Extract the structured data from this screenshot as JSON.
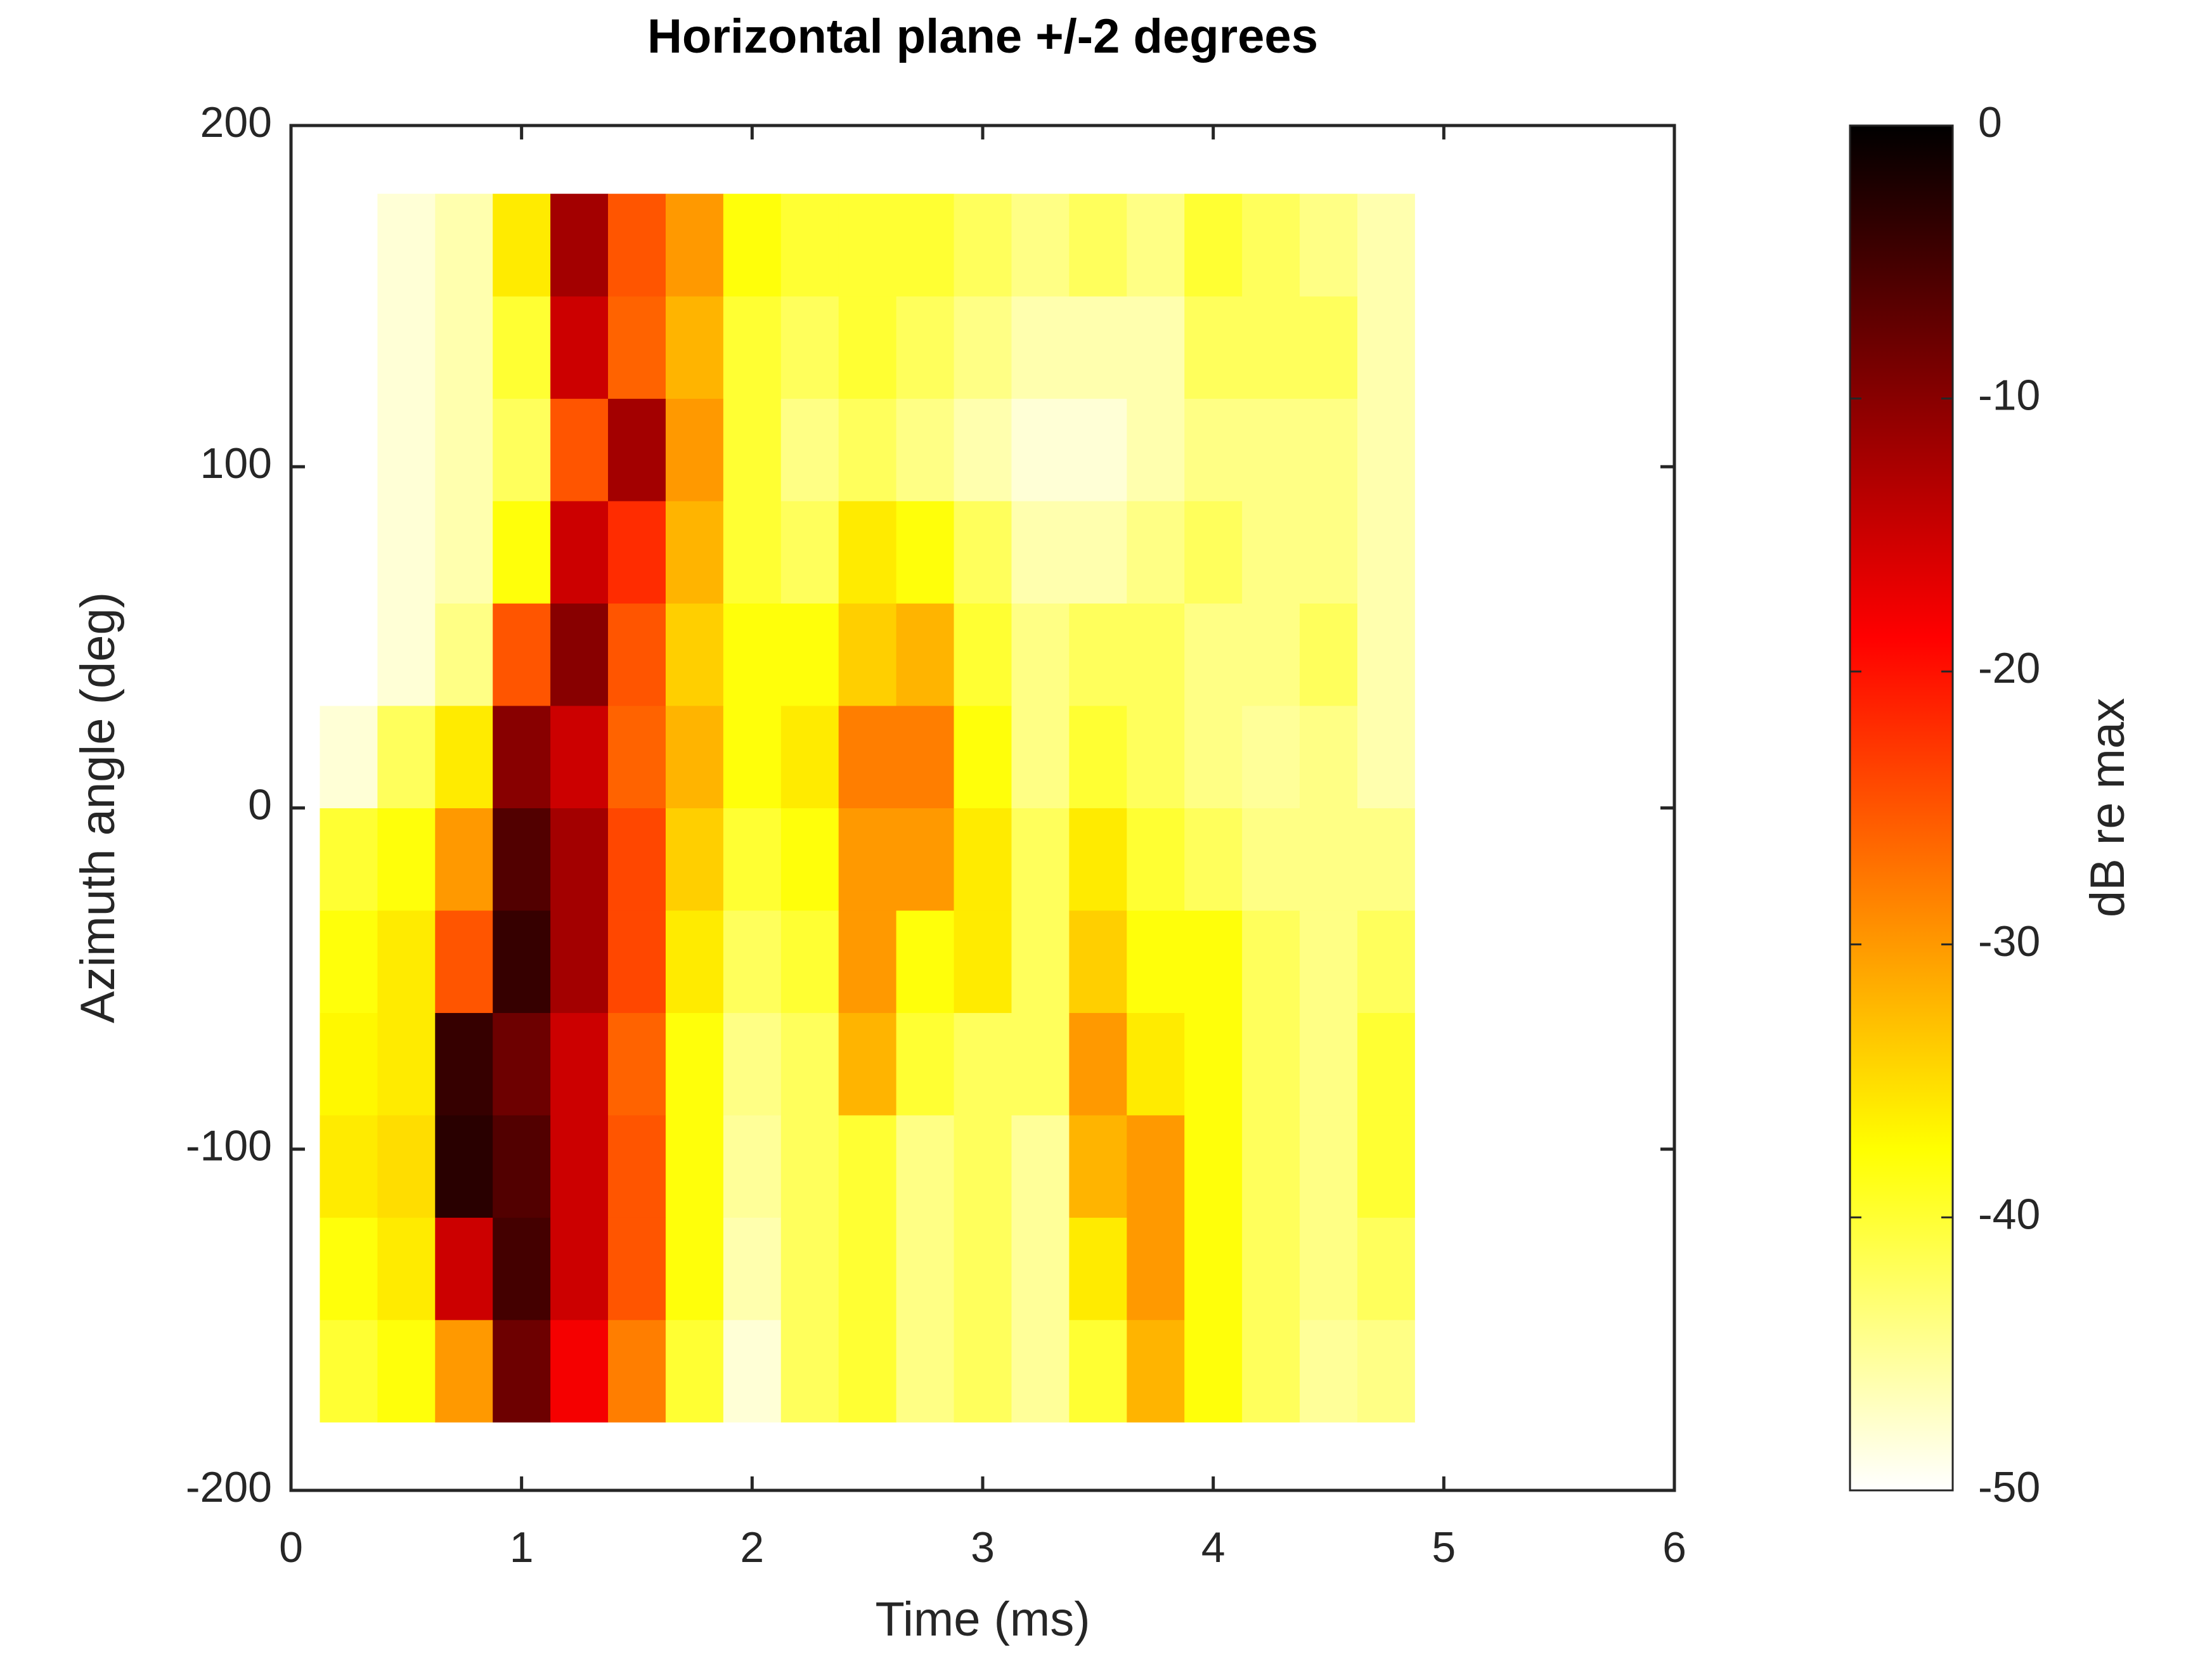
{
  "chart_data": {
    "type": "heatmap",
    "title": "Horizontal plane +/-2 degrees",
    "xlabel": "Time (ms)",
    "ylabel": "Azimuth angle (deg)",
    "colorbar_label": "dB re max",
    "xlim": [
      0,
      6
    ],
    "xticks": [
      0,
      1,
      2,
      3,
      4,
      5,
      6
    ],
    "ylim": [
      -200,
      200
    ],
    "yticks": [
      -200,
      -100,
      0,
      100,
      200
    ],
    "clim": [
      -50,
      0
    ],
    "cticks": [
      0,
      -10,
      -20,
      -30,
      -40,
      -50
    ],
    "colormap": [
      "#ffffff",
      "#ffff80",
      "#ffff00",
      "#ffaa00",
      "#ff5500",
      "#ff0000",
      "#aa0000",
      "#550000",
      "#000000"
    ],
    "x": [
      0.25,
      0.5,
      0.75,
      1.0,
      1.25,
      1.5,
      1.75,
      2.0,
      2.25,
      2.5,
      2.75,
      3.0,
      3.25,
      3.5,
      3.75,
      4.0,
      4.25,
      4.5,
      4.75,
      5.0
    ],
    "y": [
      -165,
      -135,
      -105,
      -75,
      -45,
      -15,
      15,
      45,
      75,
      105,
      135,
      165
    ],
    "z": [
      [
        -40,
        -38,
        -30,
        -8,
        -18,
        -28,
        -40,
        -48,
        -42,
        -40,
        -44,
        -42,
        -45,
        -40,
        -32,
        -38,
        -42,
        -45,
        -44,
        -50
      ],
      [
        -38,
        -36,
        -15,
        -5,
        -15,
        -25,
        -38,
        -46,
        -42,
        -40,
        -44,
        -42,
        -45,
        -36,
        -30,
        -38,
        -42,
        -44,
        -42,
        -50
      ],
      [
        -36,
        -35,
        -3,
        -6,
        -15,
        -25,
        -38,
        -45,
        -42,
        -40,
        -44,
        -42,
        -45,
        -32,
        -30,
        -38,
        -42,
        -44,
        -40,
        -50
      ],
      [
        -37,
        -36,
        -4,
        -8,
        -15,
        -26,
        -38,
        -44,
        -42,
        -32,
        -40,
        -42,
        -42,
        -30,
        -36,
        -38,
        -42,
        -44,
        -40,
        -50
      ],
      [
        -38,
        -36,
        -25,
        -4,
        -12,
        -24,
        -36,
        -42,
        -40,
        -30,
        -38,
        -36,
        -42,
        -34,
        -38,
        -38,
        -42,
        -44,
        -42,
        -50
      ],
      [
        -40,
        -38,
        -30,
        -6,
        -12,
        -24,
        -34,
        -40,
        -38,
        -30,
        -30,
        -36,
        -42,
        -36,
        -40,
        -42,
        -44,
        -44,
        -44,
        -50
      ],
      [
        -48,
        -42,
        -36,
        -10,
        -15,
        -26,
        -32,
        -38,
        -36,
        -28,
        -28,
        -38,
        -44,
        -40,
        -42,
        -44,
        -45,
        -44,
        -46,
        -50
      ],
      [
        -50,
        -48,
        -44,
        -25,
        -10,
        -25,
        -34,
        -38,
        -38,
        -34,
        -32,
        -40,
        -44,
        -42,
        -42,
        -44,
        -44,
        -42,
        -46,
        -50
      ],
      [
        -50,
        -48,
        -46,
        -38,
        -15,
        -22,
        -32,
        -40,
        -42,
        -36,
        -38,
        -42,
        -46,
        -46,
        -44,
        -42,
        -44,
        -44,
        -46,
        -50
      ],
      [
        -50,
        -48,
        -46,
        -42,
        -25,
        -12,
        -30,
        -40,
        -44,
        -42,
        -44,
        -46,
        -48,
        -48,
        -46,
        -44,
        -44,
        -44,
        -46,
        -50
      ],
      [
        -50,
        -48,
        -46,
        -40,
        -15,
        -26,
        -32,
        -40,
        -42,
        -40,
        -42,
        -44,
        -46,
        -46,
        -46,
        -42,
        -42,
        -42,
        -46,
        -50
      ],
      [
        -50,
        -48,
        -46,
        -36,
        -12,
        -25,
        -30,
        -38,
        -40,
        -40,
        -40,
        -42,
        -44,
        -42,
        -44,
        -40,
        -42,
        -44,
        -46,
        -50
      ]
    ]
  }
}
